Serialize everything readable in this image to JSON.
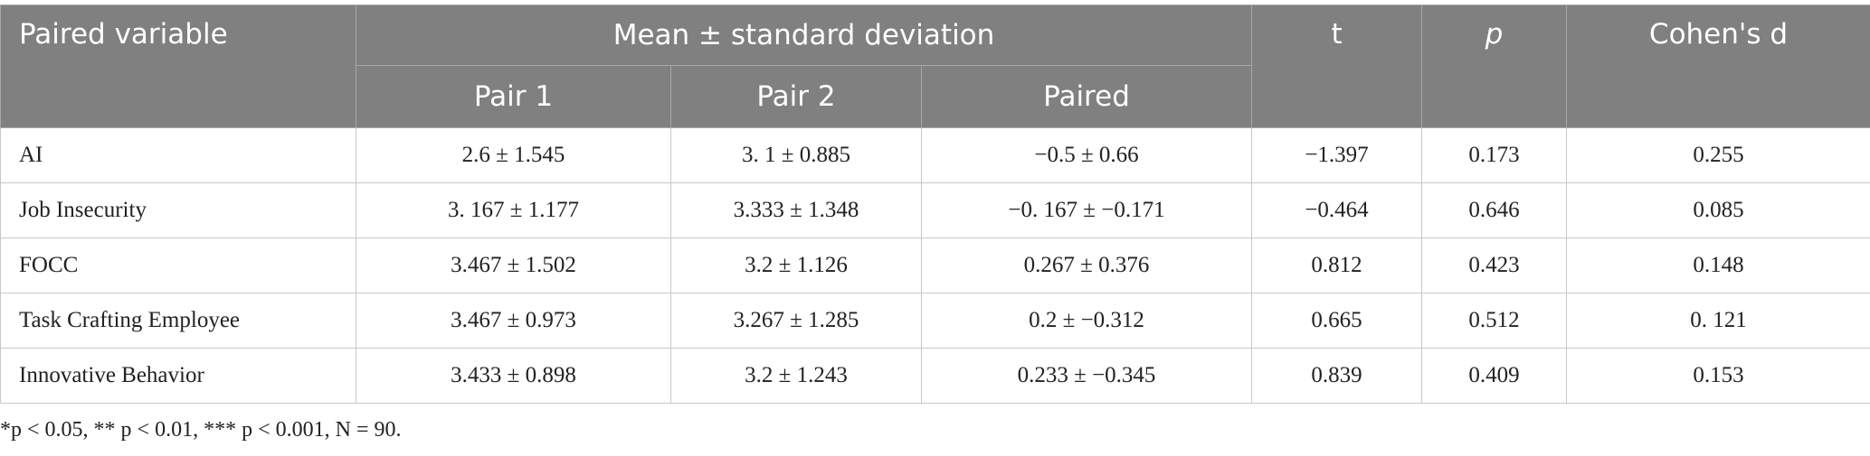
{
  "table": {
    "header": {
      "paired_variable": "Paired variable",
      "mean_sd": "Mean ± standard deviation",
      "pair1": "Pair 1",
      "pair2": "Pair 2",
      "paired": "Paired",
      "t": "t",
      "p": "p",
      "cohens_d": "Cohen's d"
    },
    "rows": [
      [
        "AI",
        "2.6 ± 1.545",
        "3. 1 ± 0.885",
        "−0.5 ± 0.66",
        "−1.397",
        "0.173",
        "0.255"
      ],
      [
        "Job Insecurity",
        "3. 167 ± 1.177",
        "3.333 ± 1.348",
        "−0. 167 ± −0.171",
        "−0.464",
        "0.646",
        "0.085"
      ],
      [
        "FOCC",
        "3.467 ± 1.502",
        "3.2 ± 1.126",
        "0.267 ± 0.376",
        "0.812",
        "0.423",
        "0.148"
      ],
      [
        "Task Crafting Employee",
        "3.467 ± 0.973",
        "3.267 ± 1.285",
        "0.2 ± −0.312",
        "0.665",
        "0.512",
        "0. 121"
      ],
      [
        "Innovative Behavior",
        "3.433 ± 0.898",
        "3.2 ± 1.243",
        "0.233 ± −0.345",
        "0.839",
        "0.409",
        "0.153"
      ]
    ]
  },
  "footnote": "*p < 0.05, ** p < 0.01, *** p < 0.001, N = 90."
}
